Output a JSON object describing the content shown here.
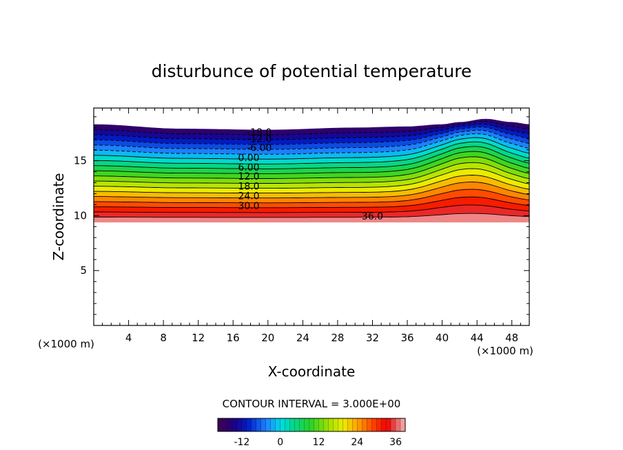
{
  "chart_data": {
    "type": "contour",
    "title": "disturbunce of potential temperature",
    "xlabel": "X-coordinate",
    "ylabel": "Z-coordinate",
    "x_unit_label": "(×1000 m)",
    "y_unit_label": "(×1000 m)",
    "xlim": [
      0,
      50
    ],
    "ylim": [
      0,
      19.8
    ],
    "x_ticks": [
      4,
      8,
      12,
      16,
      20,
      24,
      28,
      32,
      36,
      40,
      44,
      48
    ],
    "x_tick_labels": [
      "4",
      "8",
      "12",
      "16",
      "20",
      "24",
      "28",
      "32",
      "36",
      "40",
      "44",
      "48"
    ],
    "y_ticks": [
      5,
      10,
      15
    ],
    "y_tick_labels": [
      "5",
      "10",
      "15"
    ],
    "grid": false,
    "contour_interval_text": "CONTOUR INTERVAL = 3.000E+00",
    "contour_interval": 3,
    "value_range": [
      -18,
      39
    ],
    "layer_bottom_height": 9.4,
    "top_boundary": [
      {
        "x": 0,
        "z": 18.3
      },
      {
        "x": 10,
        "z": 17.9
      },
      {
        "x": 20,
        "z": 17.8
      },
      {
        "x": 30,
        "z": 18.0
      },
      {
        "x": 36,
        "z": 18.1
      },
      {
        "x": 40,
        "z": 18.3
      },
      {
        "x": 42,
        "z": 18.5
      },
      {
        "x": 45,
        "z": 18.8
      },
      {
        "x": 48,
        "z": 18.5
      },
      {
        "x": 50,
        "z": 18.3
      }
    ],
    "contour_labels": [
      {
        "text": "-18.0",
        "x": 19.0,
        "z": 17.6
      },
      {
        "text": "-12.0",
        "x": 19.0,
        "z": 17.0
      },
      {
        "text": "-6.00",
        "x": 19.0,
        "z": 16.2
      },
      {
        "text": "0.00",
        "x": 17.8,
        "z": 15.3
      },
      {
        "text": "6.00",
        "x": 17.8,
        "z": 14.4
      },
      {
        "text": "12.0",
        "x": 17.8,
        "z": 13.6
      },
      {
        "text": "18.0",
        "x": 17.8,
        "z": 12.7
      },
      {
        "text": "24.0",
        "x": 17.8,
        "z": 11.8
      },
      {
        "text": "30.0",
        "x": 17.8,
        "z": 10.9
      },
      {
        "text": "36.0",
        "x": 32.0,
        "z": 9.95
      }
    ],
    "colorbar": {
      "tick_labels": [
        "-12",
        "0",
        "12",
        "24",
        "36"
      ],
      "tick_values": [
        -12,
        0,
        12,
        24,
        36
      ],
      "range": [
        -19.5,
        39
      ]
    }
  }
}
